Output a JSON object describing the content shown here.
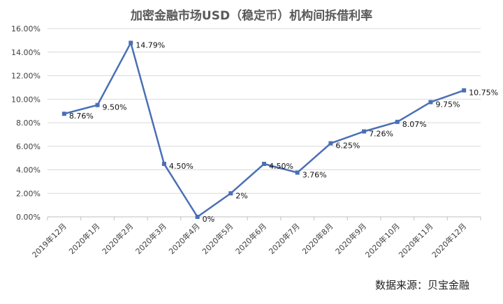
{
  "chart_data": {
    "type": "line",
    "title": "加密金融市场USD（稳定币）机构间拆借利率",
    "source": "数据来源：贝宝金融",
    "categories": [
      "2019年12月",
      "2020年1月",
      "2020年2月",
      "2020年3月",
      "2020年4月",
      "2020年5月",
      "2020年6月",
      "2020年7月",
      "2020年8月",
      "2020年9月",
      "2020年10月",
      "2020年11月",
      "2020年12月"
    ],
    "values": [
      8.76,
      9.5,
      14.79,
      4.5,
      0,
      2,
      4.5,
      3.76,
      6.25,
      7.26,
      8.07,
      9.75,
      10.75
    ],
    "data_labels": [
      "8.76%",
      "9.50%",
      "14.79%",
      "4.50%",
      "0%",
      "2%",
      "4.50%",
      "3.76%",
      "6.25%",
      "7.26%",
      "8.07%",
      "9.75%",
      "10.75%"
    ],
    "yticks": [
      "0.00%",
      "2.00%",
      "4.00%",
      "6.00%",
      "8.00%",
      "10.00%",
      "12.00%",
      "14.00%",
      "16.00%"
    ],
    "ylim": [
      0,
      16
    ],
    "grid": true,
    "legend": "none",
    "line_color": "#4a6fb5"
  }
}
